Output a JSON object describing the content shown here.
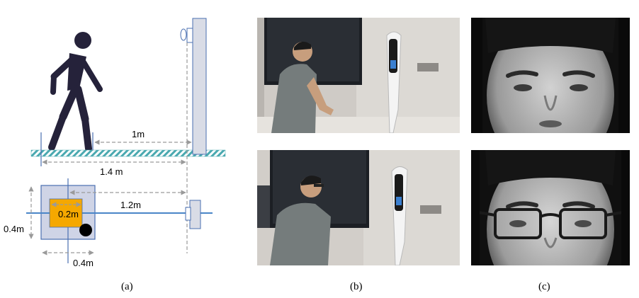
{
  "diagram": {
    "dims": {
      "ground_distance": "1m",
      "total_distance": "1.4 m",
      "top_distance": "1.2m",
      "inner_square": "0.2m",
      "left_height": "0.4m",
      "bottom_width": "0.4m"
    },
    "colors": {
      "walker": "#25223a",
      "ground_hatch": "#4aa9b0",
      "blue_line": "#4a86c8",
      "square_fill": "#cfd4e6",
      "inner_square_fill": "#f5a800",
      "device_fill": "#d9dce6"
    }
  },
  "captions": {
    "a": "(a)",
    "b": "(b)",
    "c": "(c)"
  },
  "photos": {
    "b_top": "person-standing-front-of-kiosk",
    "b_bottom": "person-with-glasses-front-of-kiosk",
    "c_top": "ir-face-no-glasses",
    "c_bottom": "ir-face-with-glasses"
  }
}
